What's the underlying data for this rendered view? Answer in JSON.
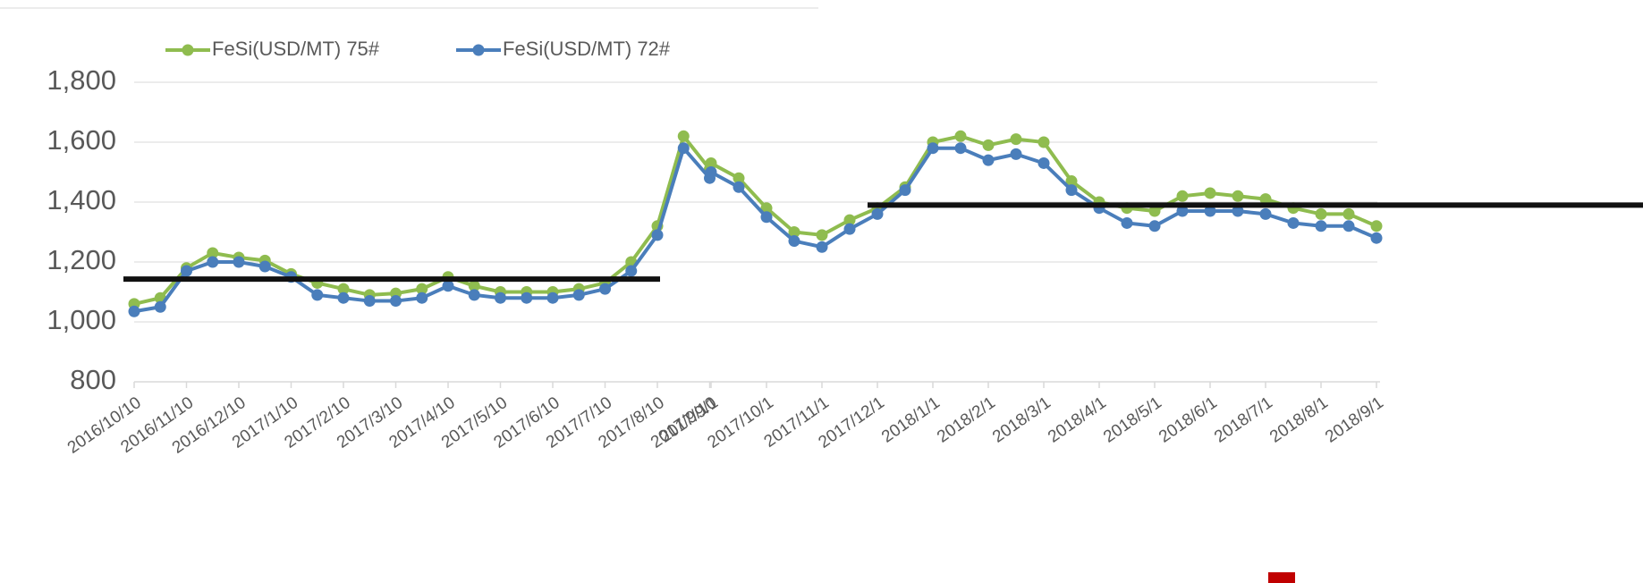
{
  "chart_data": [
    {
      "type": "line",
      "categories": [
        "2016/10/10",
        null,
        "2016/11/10",
        null,
        "2016/12/10",
        null,
        "2017/1/10",
        null,
        "2017/2/10",
        null,
        "2017/3/10",
        null,
        "2017/4/10",
        null,
        "2017/5/10",
        null,
        "2017/6/10",
        null,
        "2017/7/10",
        null,
        "2017/8/10",
        null,
        "2017/9/10"
      ],
      "series": [
        {
          "name": "FeSi(USD/MT) 75#",
          "color": "#8fbc4f",
          "values": [
            1060,
            1080,
            1180,
            1230,
            1215,
            1205,
            1160,
            1130,
            1110,
            1090,
            1095,
            1110,
            1150,
            1120,
            1100,
            1100,
            1100,
            1110,
            1130,
            1200,
            1320,
            1620,
            1510
          ]
        },
        {
          "name": "FeSi(USD/MT) 72#",
          "color": "#4a7ebb",
          "values": [
            1035,
            1050,
            1170,
            1200,
            1200,
            1185,
            1150,
            1090,
            1080,
            1070,
            1070,
            1080,
            1120,
            1090,
            1080,
            1080,
            1080,
            1090,
            1110,
            1170,
            1290,
            1580,
            1480
          ]
        }
      ],
      "ylim": [
        800,
        1800
      ],
      "yticks": [
        {
          "value": 800,
          "label": "800"
        },
        {
          "value": 1000,
          "label": "1,000"
        },
        {
          "value": 1200,
          "label": "1,200"
        },
        {
          "value": 1400,
          "label": "1,400"
        },
        {
          "value": 1600,
          "label": "1,600"
        },
        {
          "value": 1800,
          "label": "1,800"
        }
      ],
      "grid": true,
      "legend": "top",
      "hline": 1143
    },
    {
      "type": "line",
      "categories": [
        "2017/9/1",
        null,
        "2017/10/1",
        null,
        "2017/11/1",
        null,
        "2017/12/1",
        null,
        "2018/1/1",
        null,
        "2018/2/1",
        null,
        "2018/3/1",
        null,
        "2018/4/1",
        null,
        "2018/5/1",
        null,
        "2018/6/1",
        null,
        "2018/7/1",
        null,
        "2018/8/1",
        null,
        "2018/9/1"
      ],
      "series": [
        {
          "color": "#8fbc4f",
          "values": [
            1530,
            1480,
            1380,
            1300,
            1290,
            1340,
            1380,
            1450,
            1600,
            1620,
            1590,
            1610,
            1600,
            1470,
            1400,
            1380,
            1370,
            1420,
            1430,
            1420,
            1410,
            1380,
            1360,
            1360,
            1320
          ]
        },
        {
          "color": "#4a7ebb",
          "values": [
            1500,
            1450,
            1350,
            1270,
            1250,
            1310,
            1360,
            1440,
            1580,
            1580,
            1540,
            1560,
            1530,
            1440,
            1380,
            1330,
            1320,
            1370,
            1370,
            1370,
            1360,
            1330,
            1320,
            1320,
            1280
          ]
        }
      ],
      "ylim": [
        800,
        1800
      ],
      "grid": true,
      "hline": 1390
    }
  ]
}
